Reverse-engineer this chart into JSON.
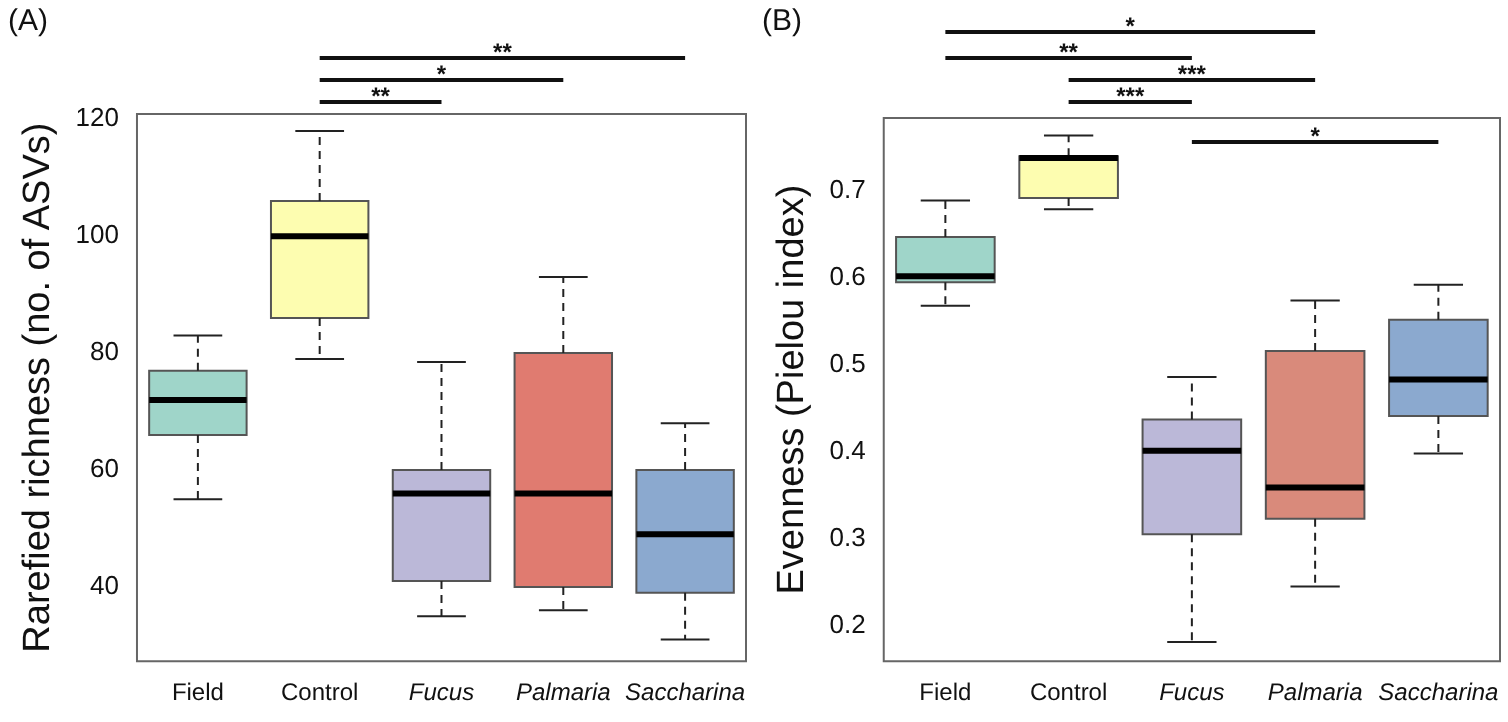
{
  "chart_data": [
    {
      "type": "box",
      "title": "(A)",
      "ylabel": "Rarefied richness (no. of ASVs)",
      "categories": [
        "Field",
        "Control",
        "Fucus",
        "Palmaria",
        "Saccharina"
      ],
      "colors": [
        "#9fd5c9",
        "#fdfdb0",
        "#bbb8d8",
        "#e07b70",
        "#8ba9cf"
      ],
      "boxes": [
        {
          "low": 55,
          "q1": 66,
          "median": 72,
          "q3": 77,
          "high": 83
        },
        {
          "low": 79,
          "q1": 86,
          "median": 100,
          "q3": 106,
          "high": 118
        },
        {
          "low": 35,
          "q1": 41,
          "median": 56,
          "q3": 60,
          "high": 78.5
        },
        {
          "low": 36,
          "q1": 40,
          "median": 56,
          "q3": 80,
          "high": 93
        },
        {
          "low": 31,
          "q1": 39,
          "median": 49,
          "q3": 60,
          "high": 68
        }
      ],
      "ylim": [
        27.3,
        120.9
      ],
      "yticks": [
        40,
        60,
        80,
        100,
        120
      ],
      "annotations": [
        "**",
        "*",
        "**"
      ]
    },
    {
      "type": "box",
      "title": "(B)",
      "ylabel": "Evenness (Pielou index)",
      "categories": [
        "Field",
        "Control",
        "Fucus",
        "Palmaria",
        "Saccharina"
      ],
      "colors": [
        "#9fd5c9",
        "#fdfdb0",
        "#bbb8d8",
        "#d98a7b",
        "#8ba9cf"
      ],
      "boxes": [
        {
          "low": 0.568,
          "q1": 0.595,
          "median": 0.602,
          "q3": 0.647,
          "high": 0.689
        },
        {
          "low": 0.679,
          "q1": 0.692,
          "median": 0.738,
          "q3": 0.74,
          "high": 0.764
        },
        {
          "low": 0.181,
          "q1": 0.305,
          "median": 0.401,
          "q3": 0.437,
          "high": 0.486
        },
        {
          "low": 0.245,
          "q1": 0.323,
          "median": 0.359,
          "q3": 0.516,
          "high": 0.574
        },
        {
          "low": 0.398,
          "q1": 0.441,
          "median": 0.483,
          "q3": 0.552,
          "high": 0.592
        }
      ],
      "ylim": [
        0.159,
        0.784
      ],
      "yticks": [
        0.2,
        0.3,
        0.4,
        0.5,
        0.6,
        0.7
      ],
      "annotations": [
        "*",
        "**",
        "***",
        "***",
        "*"
      ]
    }
  ]
}
